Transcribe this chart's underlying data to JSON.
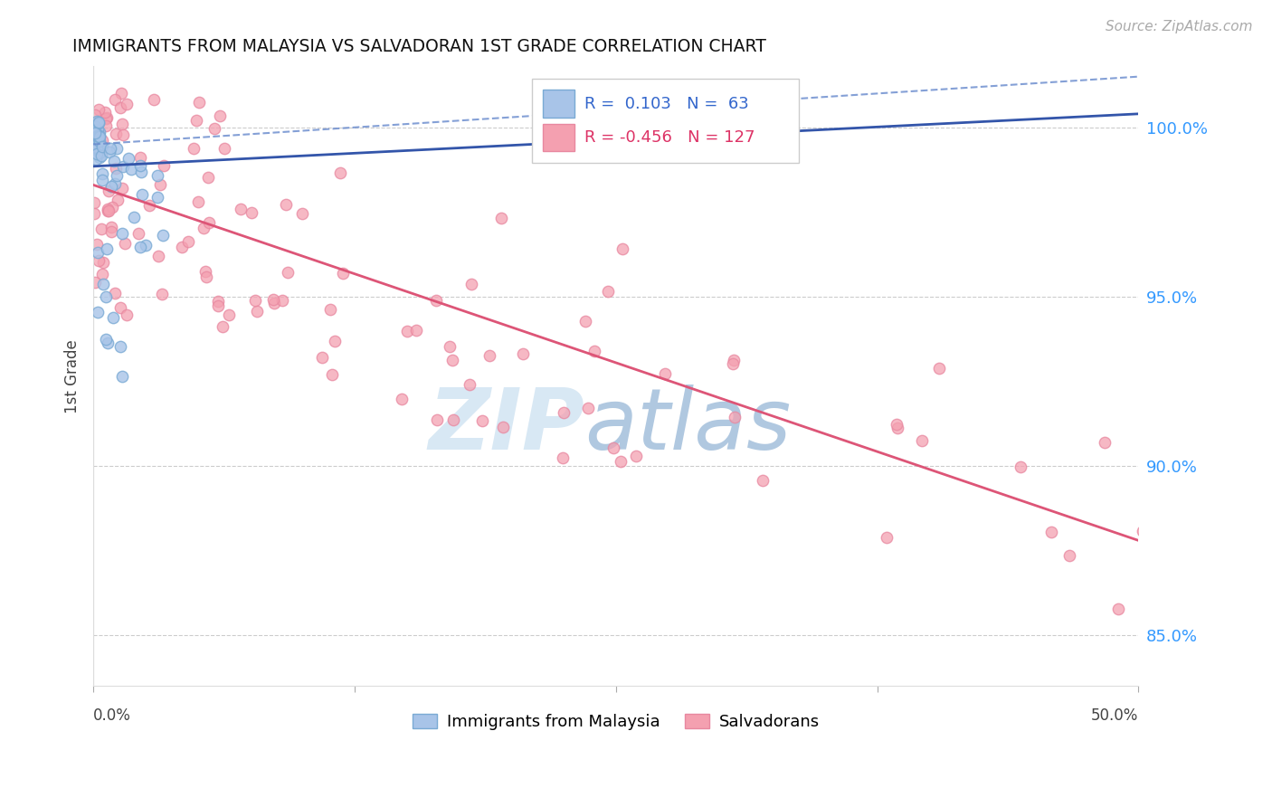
{
  "title": "IMMIGRANTS FROM MALAYSIA VS SALVADORAN 1ST GRADE CORRELATION CHART",
  "source": "Source: ZipAtlas.com",
  "ylabel": "1st Grade",
  "y_ticks": [
    85.0,
    90.0,
    95.0,
    100.0
  ],
  "legend_blue_r": "0.103",
  "legend_blue_n": "63",
  "legend_pink_r": "-0.456",
  "legend_pink_n": "127",
  "legend_label_blue": "Immigrants from Malaysia",
  "legend_label_pink": "Salvadorans",
  "blue_color": "#A8C4E8",
  "blue_edge_color": "#7AAAD4",
  "pink_color": "#F4A0B0",
  "pink_edge_color": "#E888A0",
  "blue_line_color": "#3355AA",
  "blue_dash_color": "#6688CC",
  "pink_line_color": "#DD5577",
  "background_color": "#FFFFFF",
  "xlim_data": [
    0.0,
    0.5
  ],
  "ylim": [
    83.5,
    101.8
  ],
  "blue_trend": [
    0.0,
    98.85,
    0.5,
    100.4
  ],
  "blue_dash": [
    0.0,
    99.5,
    0.5,
    101.5
  ],
  "pink_trend": [
    0.0,
    98.3,
    0.5,
    87.8
  ],
  "x_tick_positions": [
    0.0,
    0.125,
    0.25,
    0.375,
    0.5
  ],
  "watermark_zip_color": "#D8E8F4",
  "watermark_atlas_color": "#B0C8E0"
}
